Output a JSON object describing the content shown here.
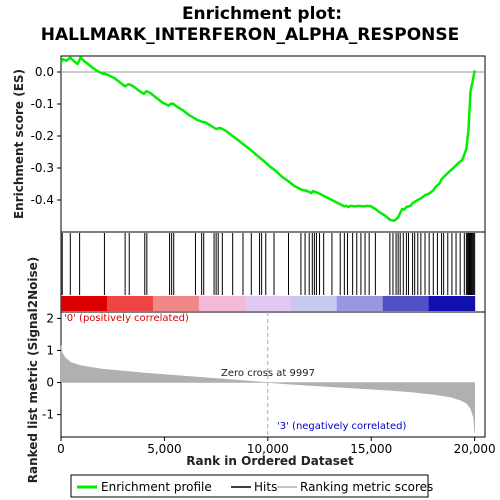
{
  "chart_data": {
    "type": "line",
    "title_line1": "Enrichment plot:",
    "title_line2": "HALLMARK_INTERFERON_ALPHA_RESPONSE",
    "top_panel": {
      "ylabel": "Enrichment score (ES)",
      "xlim": [
        0,
        20500
      ],
      "ylim": [
        -0.5,
        0.05
      ],
      "yticks": [
        0.0,
        -0.1,
        -0.2,
        -0.3,
        -0.4
      ],
      "ytick_labels": [
        "0.0",
        "-0.1",
        "-0.2",
        "-0.3",
        "-0.4"
      ],
      "series": [
        {
          "name": "Enrichment profile",
          "color": "#00ee00",
          "x": [
            0,
            100,
            250,
            450,
            600,
            800,
            950,
            1100,
            1400,
            1700,
            2000,
            2100,
            2300,
            2600,
            2900,
            3100,
            3200,
            3300,
            3500,
            3800,
            4000,
            4100,
            4150,
            4300,
            4600,
            4900,
            5200,
            5300,
            5400,
            5600,
            5900,
            6200,
            6600,
            6800,
            7000,
            7300,
            7500,
            7700,
            8000,
            8300,
            8600,
            8900,
            9200,
            9500,
            9800,
            10100,
            10400,
            10700,
            11000,
            11300,
            11600,
            11900,
            12100,
            12200,
            12300,
            12500,
            12800,
            13100,
            13400,
            13700,
            13800,
            13900,
            14000,
            14200,
            14400,
            14600,
            14800,
            15000,
            15200,
            15400,
            15700,
            15900,
            16100,
            16300,
            16400,
            16500,
            16600,
            16700,
            16900,
            17000,
            17200,
            17400,
            17600,
            17800,
            18000,
            18100,
            18300,
            18400,
            18600,
            18800,
            19000,
            19200,
            19400,
            19500,
            19600,
            19700,
            19750,
            19800,
            19900,
            20000
          ],
          "y": [
            0.03,
            0.04,
            0.035,
            0.045,
            0.035,
            0.025,
            0.045,
            0.035,
            0.02,
            0.005,
            -0.005,
            -0.005,
            -0.01,
            -0.02,
            -0.035,
            -0.045,
            -0.04,
            -0.038,
            -0.045,
            -0.06,
            -0.068,
            -0.062,
            -0.06,
            -0.065,
            -0.08,
            -0.095,
            -0.105,
            -0.1,
            -0.098,
            -0.108,
            -0.12,
            -0.135,
            -0.15,
            -0.155,
            -0.158,
            -0.17,
            -0.178,
            -0.175,
            -0.185,
            -0.2,
            -0.215,
            -0.23,
            -0.245,
            -0.262,
            -0.278,
            -0.295,
            -0.31,
            -0.328,
            -0.342,
            -0.357,
            -0.367,
            -0.372,
            -0.378,
            -0.372,
            -0.375,
            -0.38,
            -0.39,
            -0.4,
            -0.41,
            -0.42,
            -0.418,
            -0.422,
            -0.418,
            -0.42,
            -0.418,
            -0.42,
            -0.418,
            -0.42,
            -0.428,
            -0.438,
            -0.45,
            -0.462,
            -0.465,
            -0.455,
            -0.44,
            -0.428,
            -0.43,
            -0.422,
            -0.418,
            -0.41,
            -0.402,
            -0.395,
            -0.385,
            -0.38,
            -0.37,
            -0.36,
            -0.348,
            -0.335,
            -0.322,
            -0.31,
            -0.298,
            -0.285,
            -0.275,
            -0.258,
            -0.24,
            -0.18,
            -0.12,
            -0.06,
            -0.03,
            0.005
          ]
        }
      ]
    },
    "hits_panel": {
      "legend_name": "Hits",
      "hit_positions": [
        60,
        450,
        900,
        2100,
        3100,
        3300,
        4050,
        4150,
        5250,
        5350,
        5450,
        6500,
        6800,
        6900,
        7400,
        7500,
        7600,
        7800,
        8300,
        8800,
        9200,
        9600,
        9700,
        9900,
        10300,
        11000,
        11600,
        11800,
        12000,
        12150,
        12250,
        12350,
        12500,
        12700,
        13100,
        13500,
        13700,
        13850,
        14100,
        14300,
        14500,
        14700,
        14900,
        15200,
        15900,
        16050,
        16200,
        16300,
        16400,
        16550,
        16700,
        16800,
        17000,
        17100,
        17250,
        17400,
        17600,
        17800,
        18000,
        18200,
        18400,
        18500,
        18700,
        18900,
        19100,
        19300,
        19500,
        19600,
        19650,
        19700,
        19750,
        19800,
        19850,
        19900,
        19950,
        20000
      ],
      "heatmap_colors": [
        "#dd0000",
        "#ee4444",
        "#f08888",
        "#f4b8d8",
        "#e0c8f0",
        "#c8c8f0",
        "#9898e0",
        "#5050c8",
        "#1010b0"
      ]
    },
    "metric_panel": {
      "ylabel": "Ranked list metric (Signal2Noise)",
      "xlabel": "Rank in Ordered Dataset",
      "xlim": [
        0,
        20500
      ],
      "ylim": [
        -1.7,
        2.2
      ],
      "yticks": [
        2,
        1,
        0,
        -1
      ],
      "ytick_labels": [
        "2",
        "1",
        "0",
        "-1"
      ],
      "xticks": [
        0,
        5000,
        10000,
        15000,
        20000
      ],
      "xtick_labels": [
        "0",
        "5,000",
        "10,000",
        "15,000",
        "20,000"
      ],
      "metric_profile_x": [
        0,
        50,
        200,
        500,
        1000,
        2000,
        3000,
        4000,
        5000,
        6000,
        7000,
        8000,
        9000,
        9997,
        11000,
        12000,
        13000,
        14000,
        15000,
        16000,
        17000,
        18000,
        18800,
        19300,
        19600,
        19800,
        19950,
        20000
      ],
      "metric_profile_y": [
        1.15,
        0.95,
        0.78,
        0.62,
        0.52,
        0.42,
        0.36,
        0.3,
        0.25,
        0.2,
        0.15,
        0.1,
        0.05,
        0.0,
        -0.05,
        -0.09,
        -0.13,
        -0.17,
        -0.21,
        -0.25,
        -0.3,
        -0.37,
        -0.45,
        -0.55,
        -0.65,
        -0.8,
        -1.1,
        -1.55
      ],
      "zero_cross_rank": 9997,
      "zero_cross_label": "Zero cross at 9997",
      "positive_label": "'0' (positively correlated)",
      "negative_label": "'3' (negatively correlated)",
      "positive_color": "#dd0000",
      "negative_color": "#0000cc",
      "fill_color": "#b0b0b0"
    },
    "legend": {
      "items": [
        {
          "label": "Enrichment profile",
          "color": "#00ee00"
        },
        {
          "label": "Hits",
          "color": "#000000"
        },
        {
          "label": "Ranking metric scores",
          "color": "#b0b0b0"
        }
      ]
    }
  }
}
